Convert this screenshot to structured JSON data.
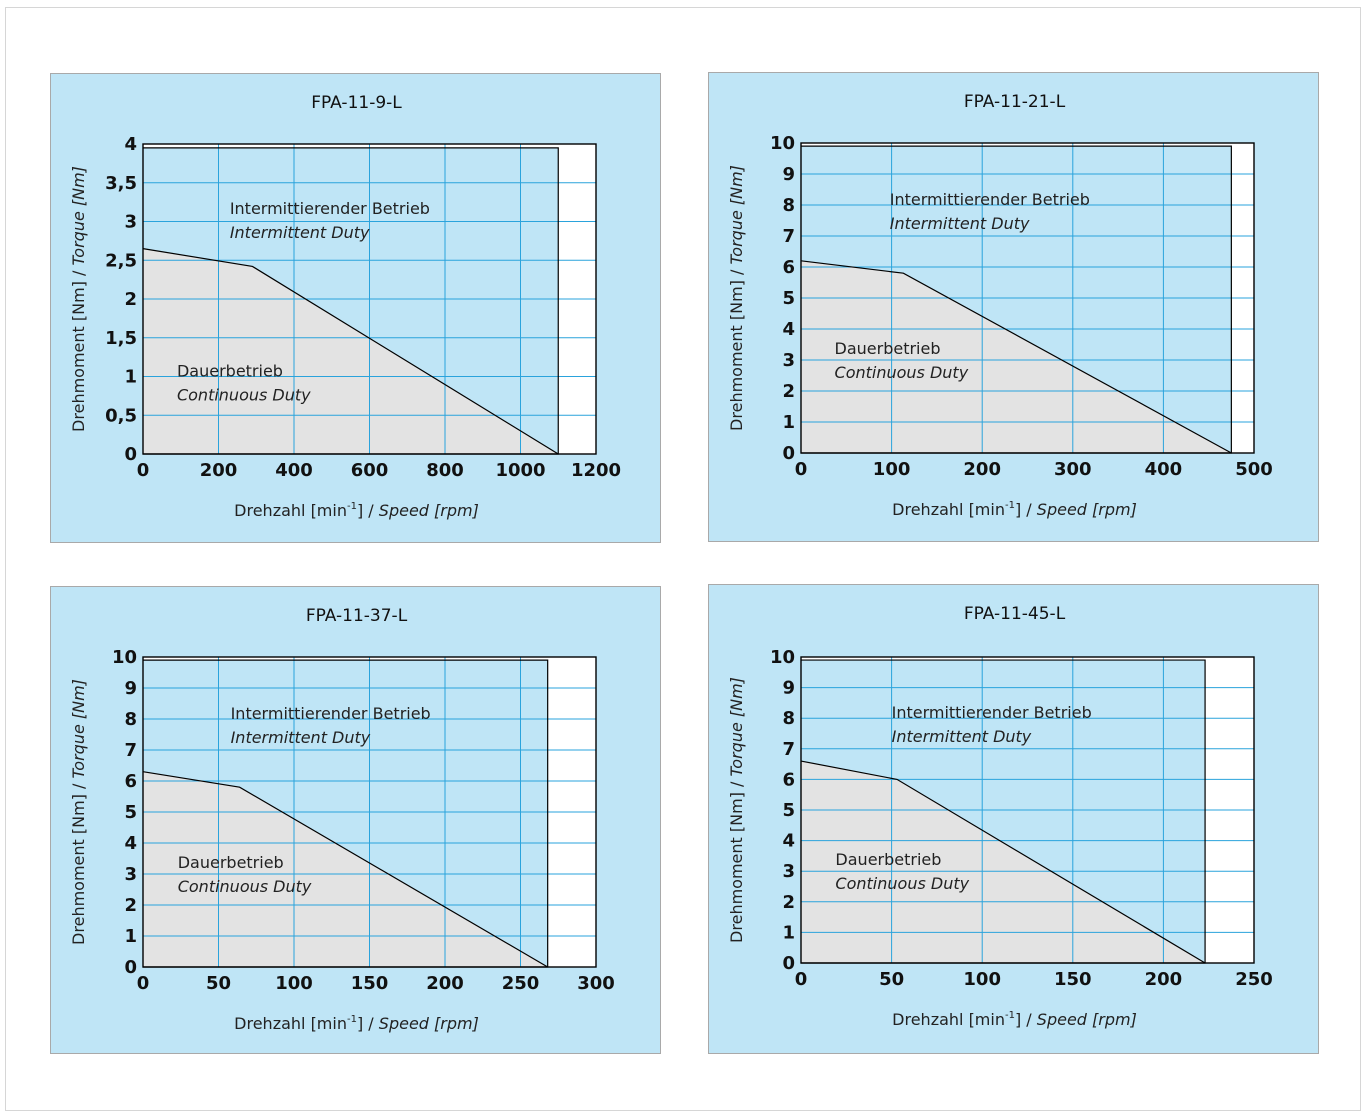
{
  "chart_data": [
    {
      "type": "area",
      "title": "FPA-11-9-L",
      "xlabel_de": "Drehzahl [min",
      "xlabel_sup": "-1",
      "xlabel_close": "]",
      "xlabel_sep": " / ",
      "xlabel_en": "Speed [rpm]",
      "ylabel_de": "Drehmoment [Nm]",
      "ylabel_sep": " / ",
      "ylabel_en": "Torque [Nm]",
      "xlim": [
        0,
        1200
      ],
      "ylim": [
        0,
        4
      ],
      "x_ticks": [
        0,
        200,
        400,
        600,
        800,
        1000,
        1200
      ],
      "x_tick_labels": [
        "0",
        "200",
        "400",
        "600",
        "800",
        "1000",
        "1200"
      ],
      "y_ticks": [
        0,
        0.5,
        1,
        1.5,
        2,
        2.5,
        3,
        3.5,
        4
      ],
      "y_tick_labels": [
        "0",
        "0,5",
        "1",
        "1,5",
        "2",
        "2,5",
        "3",
        "3,5",
        "4"
      ],
      "grid": true,
      "series": [
        {
          "name": "Intermittierender Betrieb / Intermittent Duty",
          "x": [
            0,
            1100,
            1100,
            0
          ],
          "y": [
            3.95,
            3.95,
            0,
            0
          ]
        },
        {
          "name": "Dauerbetrieb / Continuous Duty",
          "x": [
            0,
            290,
            1100
          ],
          "y": [
            2.65,
            2.42,
            0
          ]
        }
      ],
      "annotations": [
        {
          "de": "Intermittierender Betrieb",
          "en": "Intermittent Duty",
          "x": 230,
          "y": 3.1
        },
        {
          "de": "Dauerbetrieb",
          "en": "Continuous Duty",
          "x": 90,
          "y": 1.0
        }
      ]
    },
    {
      "type": "area",
      "title": "FPA-11-21-L",
      "xlabel_de": "Drehzahl [min",
      "xlabel_sup": "-1",
      "xlabel_close": "]",
      "xlabel_sep": " / ",
      "xlabel_en": "Speed [rpm]",
      "ylabel_de": "Drehmoment [Nm]",
      "ylabel_sep": " / ",
      "ylabel_en": "Torque [Nm]",
      "xlim": [
        0,
        500
      ],
      "ylim": [
        0,
        10
      ],
      "x_ticks": [
        0,
        100,
        200,
        300,
        400,
        500
      ],
      "x_tick_labels": [
        "0",
        "100",
        "200",
        "300",
        "400",
        "500"
      ],
      "y_ticks": [
        0,
        1,
        2,
        3,
        4,
        5,
        6,
        7,
        8,
        9,
        10
      ],
      "y_tick_labels": [
        "0",
        "1",
        "2",
        "3",
        "4",
        "5",
        "6",
        "7",
        "8",
        "9",
        "10"
      ],
      "grid": true,
      "series": [
        {
          "name": "Intermittierender Betrieb / Intermittent Duty",
          "x": [
            0,
            475,
            475,
            0
          ],
          "y": [
            9.9,
            9.9,
            0,
            0
          ]
        },
        {
          "name": "Dauerbetrieb / Continuous Duty",
          "x": [
            0,
            113,
            475
          ],
          "y": [
            6.2,
            5.8,
            0
          ]
        }
      ],
      "annotations": [
        {
          "de": "Intermittierender Betrieb",
          "en": "Intermittent Duty",
          "x": 98,
          "y": 8.0
        },
        {
          "de": "Dauerbetrieb",
          "en": "Continuous Duty",
          "x": 37,
          "y": 3.2
        }
      ]
    },
    {
      "type": "area",
      "title": "FPA-11-37-L",
      "xlabel_de": "Drehzahl [min",
      "xlabel_sup": "-1",
      "xlabel_close": "]",
      "xlabel_sep": " / ",
      "xlabel_en": "Speed [rpm]",
      "ylabel_de": "Drehmoment [Nm]",
      "ylabel_sep": " / ",
      "ylabel_en": "Torque [Nm]",
      "xlim": [
        0,
        300
      ],
      "ylim": [
        0,
        10
      ],
      "x_ticks": [
        0,
        50,
        100,
        150,
        200,
        250,
        300
      ],
      "x_tick_labels": [
        "0",
        "50",
        "100",
        "150",
        "200",
        "250",
        "300"
      ],
      "y_ticks": [
        0,
        1,
        2,
        3,
        4,
        5,
        6,
        7,
        8,
        9,
        10
      ],
      "y_tick_labels": [
        "0",
        "1",
        "2",
        "3",
        "4",
        "5",
        "6",
        "7",
        "8",
        "9",
        "10"
      ],
      "grid": true,
      "series": [
        {
          "name": "Intermittierender Betrieb / Intermittent Duty",
          "x": [
            0,
            268,
            268,
            0
          ],
          "y": [
            9.9,
            9.9,
            0,
            0
          ]
        },
        {
          "name": "Dauerbetrieb / Continuous Duty",
          "x": [
            0,
            64,
            268
          ],
          "y": [
            6.3,
            5.8,
            0
          ]
        }
      ],
      "annotations": [
        {
          "de": "Intermittierender Betrieb",
          "en": "Intermittent Duty",
          "x": 58,
          "y": 8.0
        },
        {
          "de": "Dauerbetrieb",
          "en": "Continuous Duty",
          "x": 23,
          "y": 3.2
        }
      ]
    },
    {
      "type": "area",
      "title": "FPA-11-45-L",
      "xlabel_de": "Drehzahl [min",
      "xlabel_sup": "-1",
      "xlabel_close": "]",
      "xlabel_sep": " / ",
      "xlabel_en": "Speed [rpm]",
      "ylabel_de": "Drehmoment [Nm]",
      "ylabel_sep": " / ",
      "ylabel_en": "Torque [Nm]",
      "xlim": [
        0,
        250
      ],
      "ylim": [
        0,
        10
      ],
      "x_ticks": [
        0,
        50,
        100,
        150,
        200,
        250
      ],
      "x_tick_labels": [
        "0",
        "50",
        "100",
        "150",
        "200",
        "250"
      ],
      "y_ticks": [
        0,
        1,
        2,
        3,
        4,
        5,
        6,
        7,
        8,
        9,
        10
      ],
      "y_tick_labels": [
        "0",
        "1",
        "2",
        "3",
        "4",
        "5",
        "6",
        "7",
        "8",
        "9",
        "10"
      ],
      "grid": true,
      "series": [
        {
          "name": "Intermittierender Betrieb / Intermittent Duty",
          "x": [
            0,
            223,
            223,
            0
          ],
          "y": [
            9.9,
            9.9,
            0,
            0
          ]
        },
        {
          "name": "Dauerbetrieb / Continuous Duty",
          "x": [
            0,
            53,
            223
          ],
          "y": [
            6.6,
            6.0,
            0
          ]
        }
      ],
      "annotations": [
        {
          "de": "Intermittierender Betrieb",
          "en": "Intermittent Duty",
          "x": 50,
          "y": 8.0
        },
        {
          "de": "Dauerbetrieb",
          "en": "Continuous Duty",
          "x": 19,
          "y": 3.2
        }
      ]
    }
  ],
  "colors": {
    "panel_bg": "#bfe5f6",
    "grid": "#2aa3dc",
    "plot_bg": "#ffffff",
    "intermittent_fill": "#bfe5f6",
    "continuous_fill": "#e3e3e3",
    "line": "#000000"
  }
}
